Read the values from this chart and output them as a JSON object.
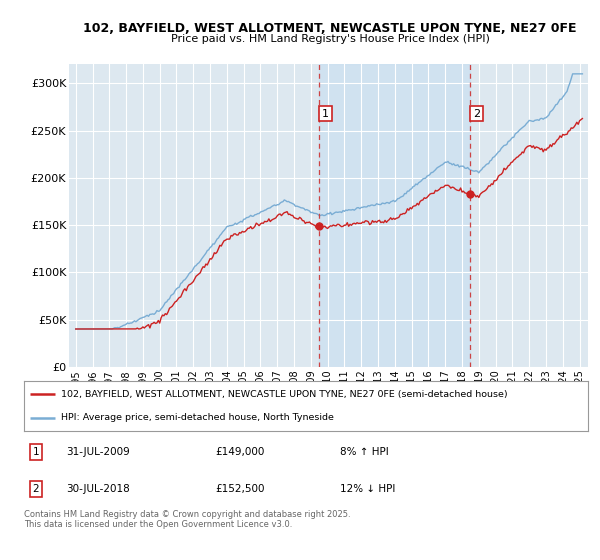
{
  "title_line1": "102, BAYFIELD, WEST ALLOTMENT, NEWCASTLE UPON TYNE, NE27 0FE",
  "title_line2": "Price paid vs. HM Land Registry's House Price Index (HPI)",
  "background_color": "#ffffff",
  "plot_bg_color": "#dde8f0",
  "grid_color": "#ffffff",
  "hpi_line_color": "#7aadd4",
  "price_line_color": "#cc2222",
  "marker1_label": "31-JUL-2009",
  "marker1_price": "£149,000",
  "marker1_hpi": "8% ↑ HPI",
  "marker2_label": "30-JUL-2018",
  "marker2_price": "£152,500",
  "marker2_hpi": "12% ↓ HPI",
  "legend_address": "102, BAYFIELD, WEST ALLOTMENT, NEWCASTLE UPON TYNE, NE27 0FE (semi-detached house)",
  "legend_hpi": "HPI: Average price, semi-detached house, North Tyneside",
  "footnote": "Contains HM Land Registry data © Crown copyright and database right 2025.\nThis data is licensed under the Open Government Licence v3.0.",
  "ylim_max": 320000,
  "yticks": [
    0,
    50000,
    100000,
    150000,
    200000,
    250000,
    300000
  ],
  "ytick_labels": [
    "£0",
    "£50K",
    "£100K",
    "£150K",
    "£200K",
    "£250K",
    "£300K"
  ]
}
